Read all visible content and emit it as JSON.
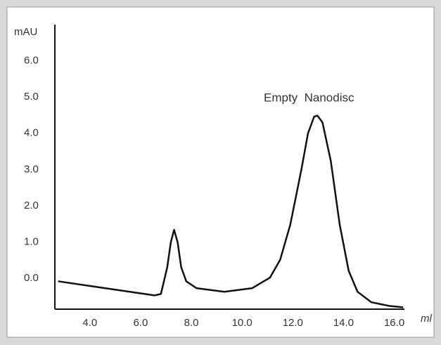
{
  "chart_data": {
    "type": "line",
    "y_label": "mAU",
    "x_label": "ml",
    "annotation": "Empty  Nanodisc",
    "xlim": [
      2.62,
      16.4
    ],
    "ylim": [
      -0.85,
      7.0
    ],
    "xticks": [
      {
        "value": 4,
        "label": "4.0"
      },
      {
        "value": 6,
        "label": "6.0"
      },
      {
        "value": 8,
        "label": "8.0"
      },
      {
        "value": 10,
        "label": "10.0"
      },
      {
        "value": 12,
        "label": "12.0"
      },
      {
        "value": 14,
        "label": "14.0"
      },
      {
        "value": 16,
        "label": "16.0"
      }
    ],
    "yticks": [
      {
        "value": 0,
        "label": "0.0"
      },
      {
        "value": 1,
        "label": "1.0"
      },
      {
        "value": 2,
        "label": "2.0"
      },
      {
        "value": 3,
        "label": "3.0"
      },
      {
        "value": 4,
        "label": "4.0"
      },
      {
        "value": 5,
        "label": "5.0"
      },
      {
        "value": 6,
        "label": "6.0"
      }
    ],
    "grid": false,
    "series": [
      {
        "color": "#111111",
        "x": [
          2.75,
          4.6,
          6.55,
          6.8,
          7.05,
          7.19,
          7.32,
          7.46,
          7.6,
          7.8,
          8.2,
          9.3,
          10.4,
          11.1,
          11.5,
          11.9,
          12.35,
          12.6,
          12.84,
          12.97,
          13.17,
          13.5,
          13.85,
          14.2,
          14.55,
          15.1,
          15.8,
          16.35
        ],
        "values": [
          -0.08,
          -0.27,
          -0.47,
          -0.43,
          0.31,
          0.99,
          1.34,
          0.99,
          0.31,
          -0.08,
          -0.27,
          -0.37,
          -0.27,
          0.02,
          0.51,
          1.48,
          3.04,
          4.0,
          4.46,
          4.49,
          4.3,
          3.23,
          1.48,
          0.21,
          -0.37,
          -0.66,
          -0.76,
          -0.8
        ]
      }
    ]
  }
}
